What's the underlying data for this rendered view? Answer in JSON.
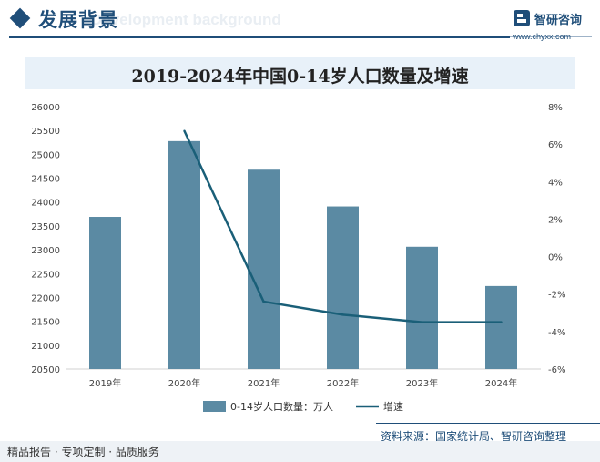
{
  "header": {
    "title": "发展背景",
    "subtitle": "Development background",
    "logo_text": "智研咨询",
    "logo_url": "www.chyxx.com"
  },
  "colors": {
    "bar": "#5b8aa3",
    "line": "#1a5f78",
    "brand": "#1f4e79"
  },
  "chart_data": {
    "type": "bar+line",
    "title": "2019-2024年中国0-14岁人口数量及增速",
    "categories": [
      "2019年",
      "2020年",
      "2021年",
      "2022年",
      "2023年",
      "2024年"
    ],
    "series": [
      {
        "name": "0-14岁人口数量：万人",
        "type": "bar",
        "axis": "left",
        "values": [
          23689,
          25277,
          24678,
          23908,
          23063,
          22240
        ]
      },
      {
        "name": "增速",
        "type": "line",
        "axis": "right",
        "values": [
          null,
          6.7,
          -2.4,
          -3.1,
          -3.5,
          -3.5
        ]
      }
    ],
    "y_left": {
      "min": 20500,
      "max": 26000,
      "step": 500,
      "ticks": [
        "20500",
        "21000",
        "21500",
        "22000",
        "22500",
        "23000",
        "23500",
        "24000",
        "24500",
        "25000",
        "25500",
        "26000"
      ]
    },
    "y_right": {
      "min": -6,
      "max": 8,
      "step": 2,
      "ticks": [
        "-6%",
        "-4%",
        "-2%",
        "0%",
        "2%",
        "4%",
        "6%",
        "8%"
      ]
    },
    "legend": [
      "0-14岁人口数量：万人",
      "增速"
    ],
    "legend_position": "bottom"
  },
  "footer": {
    "source": "资料来源：国家统计局、智研咨询整理",
    "slogan": "精品报告 · 专项定制 · 品质服务"
  }
}
